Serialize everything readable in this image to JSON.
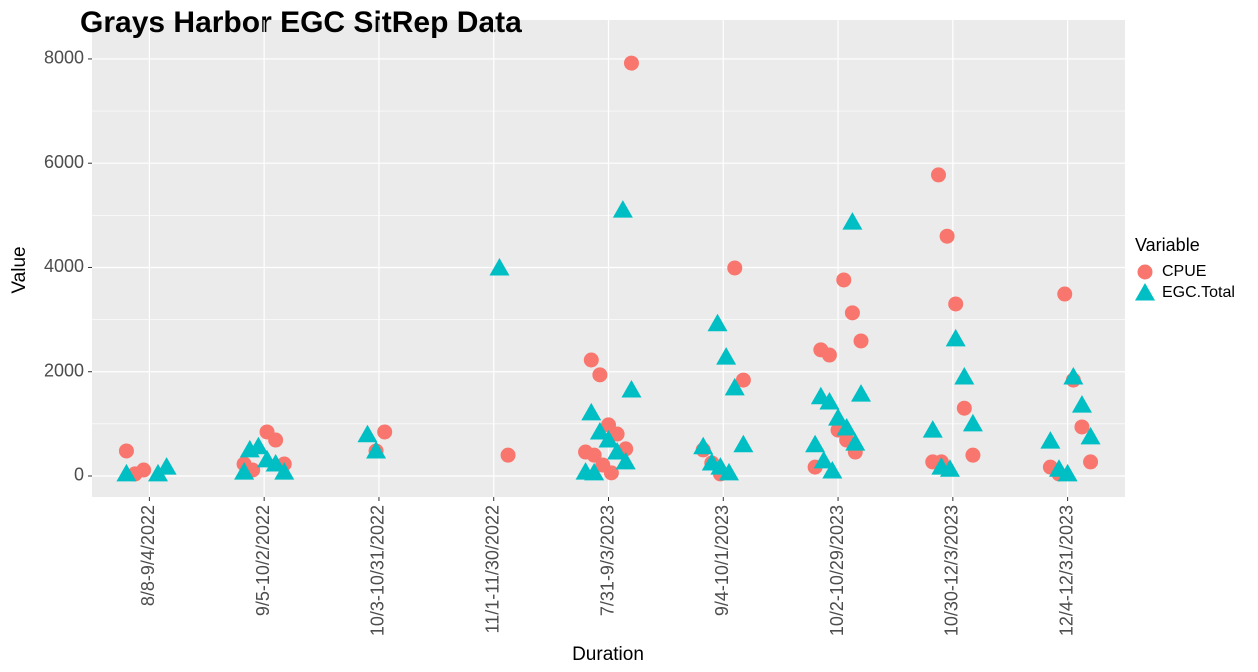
{
  "chart_data": {
    "type": "scatter",
    "title": "Grays Harbor EGC SitRep Data",
    "x_label": "Duration",
    "y_label": "Value",
    "legend_title": "Variable",
    "categories": [
      "8/8-9/4/2022",
      "9/5-10/2/2022",
      "10/3-10/31/2022",
      "11/1-11/30/2022",
      "7/31-9/3/2023",
      "9/4-10/1/2023",
      "10/2-10/29/2023",
      "10/30-12/3/2023",
      "12/4-12/31/2023"
    ],
    "ylim": [
      -403,
      8747
    ],
    "yticks": [
      0,
      2000,
      4000,
      6000,
      8000
    ],
    "grid": true,
    "legend_position": "right",
    "series": [
      {
        "name": "CPUE",
        "color": "#f8766d",
        "marker": "circle",
        "x": [
          "8/8-9/4/2022",
          "8/8-9/4/2022",
          "8/8-9/4/2022",
          "9/5-10/2/2022",
          "9/5-10/2/2022",
          "9/5-10/2/2022",
          "9/5-10/2/2022",
          "9/5-10/2/2022",
          "10/3-10/31/2022",
          "10/3-10/31/2022",
          "11/1-11/30/2022",
          "7/31-9/3/2023",
          "7/31-9/3/2023",
          "7/31-9/3/2023",
          "7/31-9/3/2023",
          "7/31-9/3/2023",
          "7/31-9/3/2023",
          "7/31-9/3/2023",
          "7/31-9/3/2023",
          "7/31-9/3/2023",
          "7/31-9/3/2023",
          "9/4-10/1/2023",
          "9/4-10/1/2023",
          "9/4-10/1/2023",
          "9/4-10/1/2023",
          "9/4-10/1/2023",
          "10/2-10/29/2023",
          "10/2-10/29/2023",
          "10/2-10/29/2023",
          "10/2-10/29/2023",
          "10/2-10/29/2023",
          "10/2-10/29/2023",
          "10/2-10/29/2023",
          "10/2-10/29/2023",
          "10/2-10/29/2023",
          "10/30-12/3/2023",
          "10/30-12/3/2023",
          "10/30-12/3/2023",
          "10/30-12/3/2023",
          "10/30-12/3/2023",
          "10/30-12/3/2023",
          "10/30-12/3/2023",
          "12/4-12/31/2023",
          "12/4-12/31/2023",
          "12/4-12/31/2023",
          "12/4-12/31/2023",
          "12/4-12/31/2023",
          "12/4-12/31/2023"
        ],
        "values": [
          480,
          40,
          115,
          845,
          690,
          230,
          230,
          115,
          480,
          845,
          400,
          7920,
          2225,
          1940,
          980,
          805,
          520,
          460,
          400,
          210,
          60,
          3990,
          1840,
          500,
          250,
          40,
          3760,
          3130,
          2590,
          2420,
          2320,
          880,
          690,
          460,
          170,
          5775,
          4600,
          3300,
          1300,
          400,
          270,
          270,
          3490,
          1840,
          940,
          270,
          170,
          40
        ]
      },
      {
        "name": "EGC.Total",
        "color": "#00bfc4",
        "marker": "triangle",
        "x": [
          "8/8-9/4/2022",
          "8/8-9/4/2022",
          "8/8-9/4/2022",
          "9/5-10/2/2022",
          "9/5-10/2/2022",
          "9/5-10/2/2022",
          "9/5-10/2/2022",
          "9/5-10/2/2022",
          "9/5-10/2/2022",
          "10/3-10/31/2022",
          "10/3-10/31/2022",
          "11/1-11/30/2022",
          "7/31-9/3/2023",
          "7/31-9/3/2023",
          "7/31-9/3/2023",
          "7/31-9/3/2023",
          "7/31-9/3/2023",
          "7/31-9/3/2023",
          "7/31-9/3/2023",
          "7/31-9/3/2023",
          "7/31-9/3/2023",
          "9/4-10/1/2023",
          "9/4-10/1/2023",
          "9/4-10/1/2023",
          "9/4-10/1/2023",
          "9/4-10/1/2023",
          "9/4-10/1/2023",
          "9/4-10/1/2023",
          "9/4-10/1/2023",
          "10/2-10/29/2023",
          "10/2-10/29/2023",
          "10/2-10/29/2023",
          "10/2-10/29/2023",
          "10/2-10/29/2023",
          "10/2-10/29/2023",
          "10/2-10/29/2023",
          "10/2-10/29/2023",
          "10/2-10/29/2023",
          "10/2-10/29/2023",
          "10/30-12/3/2023",
          "10/30-12/3/2023",
          "10/30-12/3/2023",
          "10/30-12/3/2023",
          "10/30-12/3/2023",
          "10/30-12/3/2023",
          "12/4-12/31/2023",
          "12/4-12/31/2023",
          "12/4-12/31/2023",
          "12/4-12/31/2023",
          "12/4-12/31/2023",
          "12/4-12/31/2023"
        ],
        "values": [
          40,
          170,
          40,
          500,
          560,
          310,
          230,
          75,
          75,
          790,
          480,
          3990,
          5100,
          1650,
          1210,
          845,
          690,
          460,
          270,
          75,
          60,
          2920,
          2280,
          1690,
          600,
          560,
          250,
          170,
          60,
          4870,
          1570,
          1520,
          1420,
          1110,
          920,
          630,
          600,
          290,
          95,
          2630,
          1900,
          1000,
          880,
          170,
          130,
          1900,
          1360,
          750,
          670,
          130,
          40
        ]
      }
    ]
  }
}
